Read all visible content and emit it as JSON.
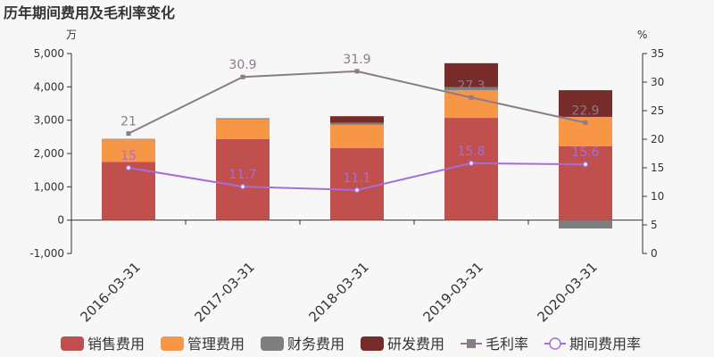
{
  "chart_data": {
    "type": "bar+line",
    "title": "历年期间费用及毛利率变化",
    "left_unit": "万",
    "right_unit": "%",
    "categories": [
      "2016-03-31",
      "2017-03-31",
      "2018-03-31",
      "2019-03-31",
      "2020-03-31"
    ],
    "left_ylim": [
      -1000,
      5000
    ],
    "left_ticks": [
      "-1,000",
      "0",
      "1,000",
      "2,000",
      "3,000",
      "4,000",
      "5,000"
    ],
    "left_tick_values": [
      -1000,
      0,
      1000,
      2000,
      3000,
      4000,
      5000
    ],
    "right_ylim": [
      0,
      35
    ],
    "right_ticks": [
      "0",
      "5",
      "10",
      "15",
      "20",
      "25",
      "30",
      "35"
    ],
    "right_tick_values": [
      0,
      5,
      10,
      15,
      20,
      25,
      30,
      35
    ],
    "bar_series": [
      {
        "name": "销售费用",
        "color": "#c0504d",
        "values": [
          1750,
          2430,
          2160,
          3070,
          2220
        ]
      },
      {
        "name": "管理费用",
        "color": "#f79646",
        "values": [
          670,
          600,
          700,
          830,
          880
        ]
      },
      {
        "name": "财务费用",
        "color": "#7f7f7f",
        "values": [
          20,
          30,
          60,
          90,
          -250
        ]
      },
      {
        "name": "研发费用",
        "color": "#772c2a",
        "values": [
          0,
          0,
          200,
          720,
          800
        ]
      }
    ],
    "line_series": [
      {
        "name": "毛利率",
        "color": "#8b7b8b",
        "values": [
          21,
          30.9,
          31.9,
          27.3,
          22.9
        ],
        "labels": [
          "21",
          "30.9",
          "31.9",
          "27.3",
          "22.9"
        ]
      },
      {
        "name": "期间费用率",
        "color": "#a86cd8",
        "values": [
          15,
          11.7,
          11.1,
          15.8,
          15.6
        ],
        "labels": [
          "15",
          "11.7",
          "11.1",
          "15.8",
          "15.6"
        ]
      }
    ],
    "legend_position": "bottom"
  }
}
